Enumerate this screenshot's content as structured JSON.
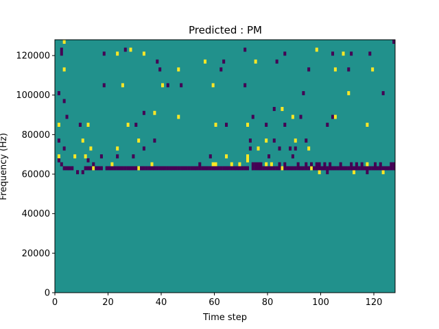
{
  "chart_data": {
    "type": "heatmap",
    "title": "Predicted : PM",
    "xlabel": "Time step",
    "ylabel": "Frequency (Hz)",
    "xlim": [
      0,
      128
    ],
    "ylim": [
      0,
      128000
    ],
    "x_ticks": [
      0,
      20,
      40,
      60,
      80,
      100,
      120
    ],
    "y_ticks": [
      0,
      20000,
      40000,
      60000,
      80000,
      100000,
      120000
    ],
    "x_tick_labels": [
      "0",
      "20",
      "40",
      "60",
      "80",
      "100",
      "120"
    ],
    "y_tick_labels": [
      "0",
      "20000",
      "40000",
      "60000",
      "80000",
      "100000",
      "120000"
    ],
    "time_steps": 128,
    "freq_bins": 64,
    "bin_width_hz": 2000,
    "values_meaning": "0 = background (teal), 1 = purple, 2 = yellow",
    "colors": {
      "background": "#21918c",
      "low": "#440154",
      "high": "#fde725"
    },
    "cells": [
      [
        3,
        63,
        2
      ],
      [
        127,
        63,
        1
      ],
      [
        2,
        61,
        1
      ],
      [
        26,
        61,
        1
      ],
      [
        28,
        61,
        2
      ],
      [
        71,
        61,
        1
      ],
      [
        98,
        61,
        2
      ],
      [
        2,
        60,
        1
      ],
      [
        18,
        60,
        1
      ],
      [
        23,
        60,
        2
      ],
      [
        33,
        60,
        2
      ],
      [
        86,
        60,
        1
      ],
      [
        104,
        60,
        1
      ],
      [
        108,
        60,
        2
      ],
      [
        111,
        60,
        1
      ],
      [
        118,
        60,
        1
      ],
      [
        38,
        58,
        1
      ],
      [
        56,
        58,
        2
      ],
      [
        63,
        58,
        1
      ],
      [
        75,
        58,
        2
      ],
      [
        83,
        58,
        1
      ],
      [
        3,
        56,
        2
      ],
      [
        39,
        56,
        1
      ],
      [
        46,
        56,
        2
      ],
      [
        62,
        56,
        1
      ],
      [
        95,
        56,
        1
      ],
      [
        105,
        56,
        2
      ],
      [
        110,
        56,
        1
      ],
      [
        119,
        56,
        2
      ],
      [
        18,
        52,
        1
      ],
      [
        25,
        52,
        2
      ],
      [
        40,
        52,
        2
      ],
      [
        42,
        52,
        1
      ],
      [
        47,
        52,
        1
      ],
      [
        59,
        52,
        2
      ],
      [
        71,
        52,
        1
      ],
      [
        1,
        50,
        1
      ],
      [
        93,
        50,
        1
      ],
      [
        110,
        50,
        2
      ],
      [
        123,
        50,
        1
      ],
      [
        3,
        48,
        1
      ],
      [
        33,
        45,
        1
      ],
      [
        37,
        45,
        2
      ],
      [
        82,
        46,
        1
      ],
      [
        85,
        46,
        2
      ],
      [
        4,
        44,
        1
      ],
      [
        46,
        44,
        2
      ],
      [
        74,
        44,
        1
      ],
      [
        89,
        44,
        2
      ],
      [
        92,
        44,
        1
      ],
      [
        104,
        44,
        1
      ],
      [
        105,
        44,
        2
      ],
      [
        1,
        42,
        2
      ],
      [
        9,
        42,
        1
      ],
      [
        12,
        42,
        2
      ],
      [
        27,
        42,
        2
      ],
      [
        30,
        42,
        1
      ],
      [
        60,
        42,
        2
      ],
      [
        64,
        42,
        1
      ],
      [
        72,
        42,
        2
      ],
      [
        79,
        42,
        1
      ],
      [
        86,
        42,
        1
      ],
      [
        102,
        42,
        1
      ],
      [
        117,
        42,
        2
      ],
      [
        1,
        38,
        1
      ],
      [
        10,
        38,
        2
      ],
      [
        31,
        38,
        2
      ],
      [
        37,
        38,
        1
      ],
      [
        73,
        38,
        1
      ],
      [
        79,
        38,
        2
      ],
      [
        82,
        38,
        1
      ],
      [
        90,
        38,
        2
      ],
      [
        94,
        38,
        1
      ],
      [
        3,
        36,
        1
      ],
      [
        13,
        36,
        2
      ],
      [
        23,
        36,
        2
      ],
      [
        33,
        36,
        1
      ],
      [
        73,
        36,
        1
      ],
      [
        76,
        36,
        2
      ],
      [
        84,
        36,
        1
      ],
      [
        88,
        36,
        1
      ],
      [
        90,
        36,
        1
      ],
      [
        95,
        36,
        2
      ],
      [
        1,
        34,
        2
      ],
      [
        7,
        34,
        2
      ],
      [
        11,
        34,
        2
      ],
      [
        17,
        34,
        1
      ],
      [
        23,
        34,
        1
      ],
      [
        29,
        34,
        1
      ],
      [
        58,
        34,
        1
      ],
      [
        64,
        34,
        2
      ],
      [
        72,
        34,
        2
      ],
      [
        72,
        33,
        2
      ],
      [
        80,
        34,
        1
      ],
      [
        89,
        34,
        1
      ],
      [
        1,
        33,
        1
      ],
      [
        12,
        33,
        1
      ],
      [
        23,
        31,
        1
      ],
      [
        31,
        31,
        2
      ],
      [
        72,
        31,
        1
      ],
      [
        85,
        31,
        2
      ],
      [
        90,
        31,
        1
      ],
      [
        96,
        31,
        2
      ],
      [
        99,
        30,
        2
      ],
      [
        102,
        30,
        1
      ],
      [
        112,
        30,
        2
      ],
      [
        117,
        30,
        1
      ],
      [
        123,
        30,
        2
      ],
      [
        8,
        30,
        1
      ],
      [
        10,
        30,
        1
      ],
      [
        11,
        31,
        1
      ],
      [
        14,
        32,
        1
      ],
      [
        21,
        32,
        2
      ],
      [
        36,
        32,
        2
      ],
      [
        54,
        32,
        1
      ],
      [
        59,
        32,
        2
      ],
      [
        60,
        32,
        2
      ],
      [
        66,
        32,
        2
      ],
      [
        69,
        32,
        2
      ],
      [
        74,
        32,
        1
      ],
      [
        75,
        32,
        1
      ],
      [
        76,
        32,
        1
      ],
      [
        77,
        32,
        1
      ],
      [
        79,
        32,
        2
      ],
      [
        81,
        32,
        2
      ],
      [
        84,
        32,
        1
      ],
      [
        86,
        32,
        1
      ],
      [
        91,
        32,
        1
      ],
      [
        94,
        32,
        1
      ],
      [
        96,
        32,
        1
      ],
      [
        98,
        32,
        1
      ],
      [
        99,
        32,
        1
      ],
      [
        101,
        32,
        1
      ],
      [
        103,
        32,
        1
      ],
      [
        107,
        32,
        1
      ],
      [
        111,
        32,
        1
      ],
      [
        113,
        32,
        1
      ],
      [
        115,
        32,
        1
      ],
      [
        117,
        32,
        2
      ],
      [
        120,
        32,
        1
      ],
      [
        122,
        32,
        1
      ],
      [
        126,
        32,
        1
      ],
      [
        127,
        32,
        1
      ],
      [
        2,
        32,
        1
      ],
      [
        3,
        31,
        1
      ],
      [
        4,
        31,
        1
      ],
      [
        5,
        31,
        1
      ],
      [
        6,
        31,
        1
      ],
      [
        12,
        31,
        1
      ],
      [
        13,
        31,
        1
      ],
      [
        14,
        31,
        2
      ],
      [
        15,
        31,
        1
      ],
      [
        16,
        31,
        1
      ],
      [
        17,
        31,
        1
      ],
      [
        19,
        31,
        1
      ],
      [
        20,
        31,
        1
      ],
      [
        21,
        31,
        1
      ],
      [
        22,
        31,
        1
      ],
      [
        24,
        31,
        1
      ],
      [
        25,
        31,
        1
      ],
      [
        26,
        31,
        1
      ],
      [
        27,
        31,
        1
      ],
      [
        28,
        31,
        1
      ],
      [
        29,
        31,
        1
      ],
      [
        30,
        31,
        1
      ],
      [
        32,
        31,
        1
      ],
      [
        33,
        31,
        1
      ],
      [
        34,
        31,
        1
      ],
      [
        35,
        31,
        1
      ],
      [
        36,
        31,
        1
      ],
      [
        37,
        31,
        1
      ],
      [
        38,
        31,
        1
      ],
      [
        39,
        31,
        1
      ],
      [
        40,
        31,
        1
      ],
      [
        41,
        31,
        1
      ],
      [
        42,
        31,
        1
      ],
      [
        43,
        31,
        1
      ],
      [
        44,
        31,
        1
      ],
      [
        45,
        31,
        1
      ],
      [
        46,
        31,
        1
      ],
      [
        47,
        31,
        1
      ],
      [
        48,
        31,
        1
      ],
      [
        49,
        31,
        1
      ],
      [
        50,
        31,
        1
      ],
      [
        51,
        31,
        1
      ],
      [
        52,
        31,
        1
      ],
      [
        53,
        31,
        1
      ],
      [
        54,
        31,
        1
      ],
      [
        55,
        31,
        1
      ],
      [
        56,
        31,
        1
      ],
      [
        57,
        31,
        1
      ],
      [
        58,
        31,
        1
      ],
      [
        59,
        31,
        1
      ],
      [
        60,
        31,
        1
      ],
      [
        61,
        31,
        1
      ],
      [
        62,
        31,
        1
      ],
      [
        63,
        31,
        1
      ],
      [
        64,
        31,
        1
      ],
      [
        65,
        31,
        1
      ],
      [
        66,
        31,
        1
      ],
      [
        67,
        31,
        1
      ],
      [
        68,
        31,
        1
      ],
      [
        69,
        31,
        1
      ],
      [
        70,
        31,
        1
      ],
      [
        71,
        31,
        1
      ],
      [
        74,
        31,
        1
      ],
      [
        75,
        31,
        1
      ],
      [
        76,
        31,
        1
      ],
      [
        77,
        31,
        1
      ],
      [
        78,
        31,
        1
      ],
      [
        79,
        31,
        1
      ],
      [
        80,
        31,
        1
      ],
      [
        81,
        31,
        1
      ],
      [
        82,
        31,
        1
      ],
      [
        83,
        31,
        1
      ],
      [
        84,
        31,
        1
      ],
      [
        86,
        31,
        1
      ],
      [
        87,
        31,
        1
      ],
      [
        88,
        31,
        1
      ],
      [
        89,
        31,
        1
      ],
      [
        91,
        31,
        1
      ],
      [
        92,
        31,
        1
      ],
      [
        93,
        31,
        1
      ],
      [
        94,
        31,
        1
      ],
      [
        95,
        31,
        1
      ],
      [
        97,
        31,
        1
      ],
      [
        98,
        31,
        1
      ],
      [
        99,
        31,
        1
      ],
      [
        100,
        31,
        1
      ],
      [
        101,
        31,
        1
      ],
      [
        102,
        31,
        1
      ],
      [
        103,
        31,
        1
      ],
      [
        104,
        31,
        1
      ],
      [
        105,
        31,
        1
      ],
      [
        106,
        31,
        1
      ],
      [
        107,
        31,
        1
      ],
      [
        108,
        31,
        1
      ],
      [
        109,
        31,
        1
      ],
      [
        110,
        31,
        1
      ],
      [
        111,
        31,
        1
      ],
      [
        112,
        31,
        1
      ],
      [
        113,
        31,
        1
      ],
      [
        114,
        31,
        1
      ],
      [
        115,
        31,
        1
      ],
      [
        116,
        31,
        1
      ],
      [
        117,
        31,
        1
      ],
      [
        118,
        31,
        1
      ],
      [
        119,
        31,
        1
      ],
      [
        120,
        31,
        1
      ],
      [
        121,
        31,
        1
      ],
      [
        122,
        31,
        1
      ],
      [
        123,
        31,
        1
      ],
      [
        124,
        31,
        1
      ],
      [
        125,
        31,
        1
      ],
      [
        126,
        31,
        1
      ],
      [
        127,
        31,
        1
      ]
    ]
  }
}
